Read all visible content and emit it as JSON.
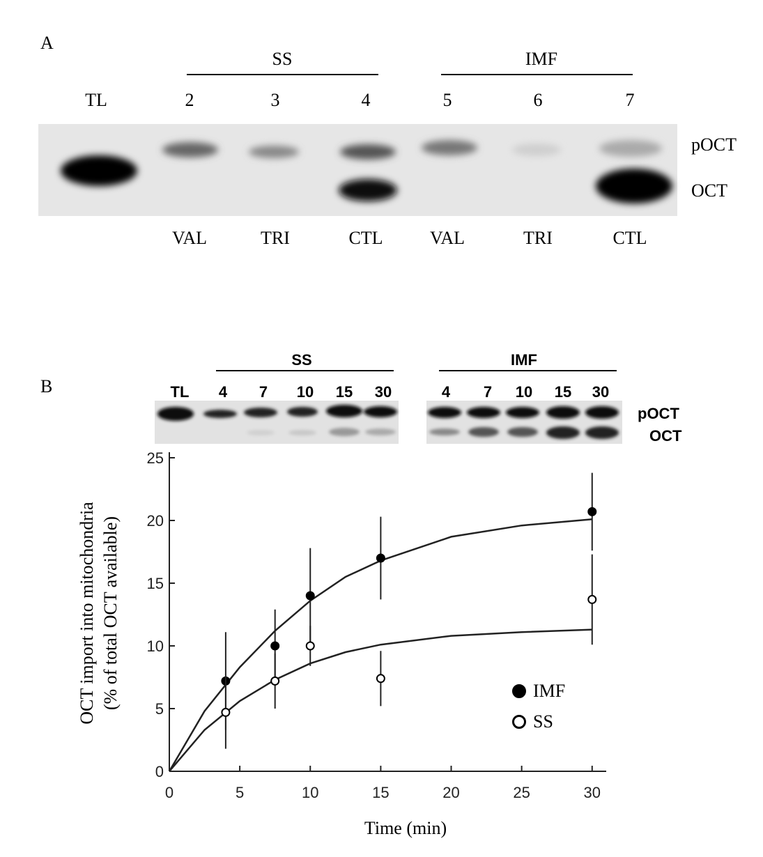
{
  "panel_a": {
    "label": "A",
    "groups": [
      "SS",
      "IMF"
    ],
    "lanes": [
      "TL",
      "2",
      "3",
      "4",
      "5",
      "6",
      "7"
    ],
    "treatments": [
      "VAL",
      "TRI",
      "CTL",
      "VAL",
      "TRI",
      "CTL"
    ],
    "bands": [
      "pOCT",
      "OCT"
    ]
  },
  "panel_b": {
    "label": "B",
    "groups": [
      "SS",
      "IMF"
    ],
    "ref_lane": "TL",
    "ss_lanes": [
      "4",
      "7",
      "10",
      "15",
      "30"
    ],
    "imf_lanes": [
      "4",
      "7",
      "10",
      "15",
      "30"
    ],
    "bands": [
      "pOCT",
      "OCT"
    ]
  },
  "chart_data": {
    "type": "scatter",
    "xlabel": "Time (min)",
    "ylabel": [
      "OCT import into mitochondria",
      "(% of total OCT available)"
    ],
    "xlim": [
      0,
      31
    ],
    "ylim": [
      0,
      25
    ],
    "xticks": [
      0,
      5,
      10,
      15,
      20,
      25,
      30
    ],
    "yticks": [
      0,
      5,
      10,
      15,
      20,
      25
    ],
    "series": [
      {
        "name": "IMF",
        "color": "#000000",
        "marker": "filled",
        "x": [
          4,
          7.5,
          10,
          15,
          30
        ],
        "values": [
          7.2,
          10,
          14,
          17,
          20.7
        ],
        "errors": [
          3.9,
          2.9,
          3.8,
          3.3,
          3.1
        ]
      },
      {
        "name": "SS",
        "color": "#000000",
        "marker": "open",
        "x": [
          4,
          7.5,
          10,
          15,
          30
        ],
        "values": [
          4.7,
          7.2,
          10,
          7.4,
          13.7
        ],
        "errors": [
          2.9,
          2.2,
          1.6,
          2.2,
          3.6
        ]
      }
    ],
    "fits": [
      {
        "x": [
          0,
          2.5,
          5,
          7.5,
          10,
          12.5,
          15,
          20,
          25,
          30
        ],
        "values": [
          0,
          4.8,
          8.3,
          11.2,
          13.6,
          15.5,
          16.8,
          18.7,
          19.6,
          20.1
        ]
      },
      {
        "x": [
          0,
          2.5,
          5,
          7.5,
          10,
          12.5,
          15,
          20,
          25,
          30
        ],
        "values": [
          0,
          3.3,
          5.6,
          7.3,
          8.6,
          9.5,
          10.1,
          10.8,
          11.1,
          11.3
        ]
      }
    ]
  }
}
